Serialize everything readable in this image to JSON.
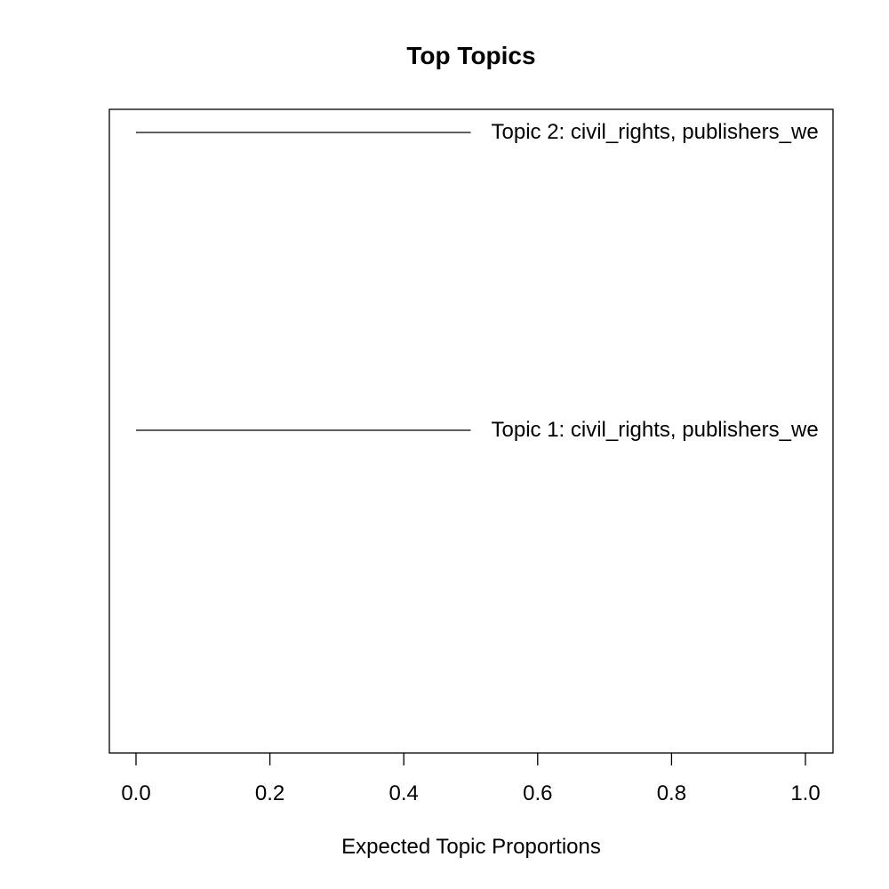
{
  "chart_data": {
    "type": "line",
    "title": "Top Topics",
    "xlabel": "Expected Topic Proportions",
    "ylabel": "",
    "xlim": [
      0.0,
      1.0
    ],
    "x_ticks": [
      0.0,
      0.2,
      0.4,
      0.6,
      0.8,
      1.0
    ],
    "x_tick_labels": [
      "0.0",
      "0.2",
      "0.4",
      "0.6",
      "0.8",
      "1.0"
    ],
    "series": [
      {
        "label": "Topic 2: civil_rights, publishers_we",
        "x_start": 0.0,
        "x_end": 0.5
      },
      {
        "label": "Topic 1: civil_rights, publishers_we",
        "x_start": 0.0,
        "x_end": 0.5
      }
    ],
    "grid": false,
    "legend": "none"
  }
}
